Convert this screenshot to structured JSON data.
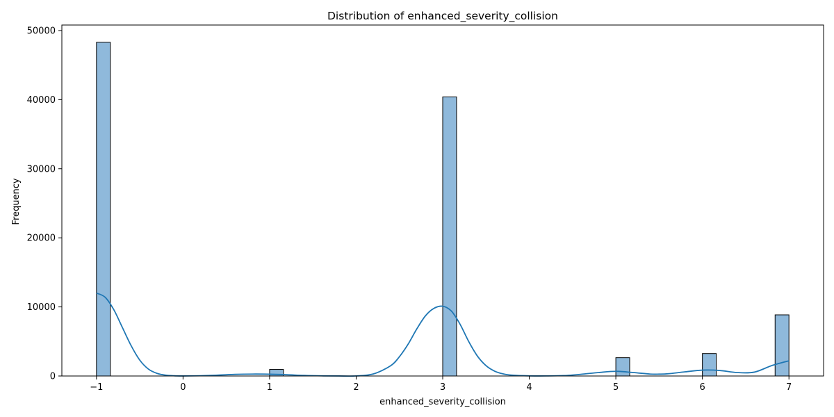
{
  "chart_data": {
    "type": "bar",
    "title": "Distribution of enhanced_severity_collision",
    "xlabel": "enhanced_severity_collision",
    "ylabel": "Frequency",
    "xlim": [
      -1.4,
      7.4
    ],
    "ylim": [
      0,
      50800
    ],
    "x_ticks": [
      -1,
      0,
      1,
      2,
      3,
      4,
      5,
      6,
      7
    ],
    "x_tick_labels": [
      "−1",
      "0",
      "1",
      "2",
      "3",
      "4",
      "5",
      "6",
      "7"
    ],
    "y_ticks": [
      0,
      10000,
      20000,
      30000,
      40000,
      50000
    ],
    "y_tick_labels": [
      "0",
      "10000",
      "20000",
      "30000",
      "40000",
      "50000"
    ],
    "bin_width": 0.16,
    "bars": [
      {
        "x0": -1.0,
        "x1": -0.84,
        "value": 48300
      },
      {
        "x0": 1.0,
        "x1": 1.16,
        "value": 950
      },
      {
        "x0": 3.0,
        "x1": 3.16,
        "value": 40400
      },
      {
        "x0": 5.0,
        "x1": 5.16,
        "value": 2650
      },
      {
        "x0": 6.0,
        "x1": 6.16,
        "value": 3250
      },
      {
        "x0": 6.84,
        "x1": 7.0,
        "value": 8850
      }
    ],
    "kde": {
      "x": [
        -1.0,
        -0.9,
        -0.8,
        -0.7,
        -0.6,
        -0.5,
        -0.4,
        -0.3,
        -0.2,
        -0.1,
        0.0,
        0.2,
        0.4,
        0.6,
        0.8,
        1.0,
        1.2,
        1.4,
        1.6,
        1.8,
        2.0,
        2.2,
        2.4,
        2.5,
        2.6,
        2.7,
        2.8,
        2.9,
        3.0,
        3.1,
        3.2,
        3.3,
        3.4,
        3.5,
        3.6,
        3.7,
        3.8,
        4.0,
        4.2,
        4.4,
        4.6,
        4.8,
        5.0,
        5.2,
        5.4,
        5.5,
        5.6,
        5.8,
        6.0,
        6.2,
        6.4,
        6.6,
        6.8,
        7.0
      ],
      "y": [
        12000,
        11400,
        9600,
        7000,
        4400,
        2300,
        1000,
        380,
        120,
        30,
        5,
        40,
        120,
        230,
        280,
        260,
        180,
        80,
        25,
        5,
        10,
        300,
        1500,
        2800,
        4600,
        6800,
        8700,
        9800,
        10100,
        9400,
        7500,
        5000,
        2900,
        1500,
        700,
        300,
        120,
        20,
        10,
        60,
        250,
        500,
        680,
        500,
        280,
        270,
        320,
        600,
        850,
        800,
        500,
        560,
        1500,
        2200
      ],
      "color": "#1f77b4"
    },
    "bar_fill": "#8fb9db",
    "bar_edge": "#000000",
    "grid": false,
    "legend": "none"
  }
}
